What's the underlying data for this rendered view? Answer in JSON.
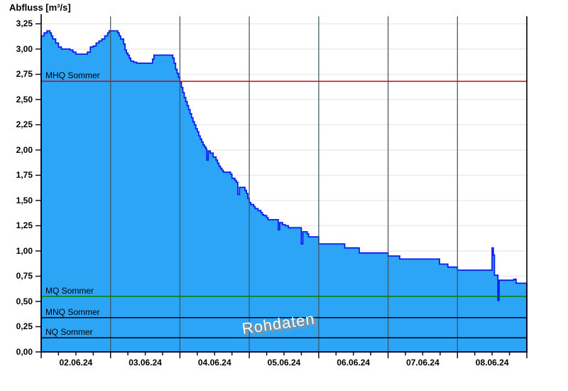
{
  "title": "Abfluss [m³/s]",
  "watermark": "Rohdaten",
  "colors": {
    "area_fill": "#2da5f6",
    "area_stroke": "#0a1cee",
    "h_grid": "#ececec",
    "v_grid": "#3d525a",
    "axis": "#000000",
    "mhq_line": "#d40000",
    "mq_line": "#007d00",
    "mnq_line": "#000000",
    "nq_line": "#000000"
  },
  "chart_data": {
    "type": "area",
    "title": "Abfluss [m³/s]",
    "ylabel": "Abfluss [m³/s]",
    "xlabel": "",
    "x_unit": "hours since 02.06.24 00:00",
    "xlim": [
      0,
      168
    ],
    "ylim": [
      0,
      3.32
    ],
    "grid": "on",
    "y_ticks": [
      {
        "value": 0.0,
        "label": "0,00"
      },
      {
        "value": 0.25,
        "label": "0,25"
      },
      {
        "value": 0.5,
        "label": "0,50"
      },
      {
        "value": 0.75,
        "label": "0,75"
      },
      {
        "value": 1.0,
        "label": "1,00"
      },
      {
        "value": 1.25,
        "label": "1,25"
      },
      {
        "value": 1.5,
        "label": "1,50"
      },
      {
        "value": 1.75,
        "label": "1,75"
      },
      {
        "value": 2.0,
        "label": "2,00"
      },
      {
        "value": 2.25,
        "label": "2,25"
      },
      {
        "value": 2.5,
        "label": "2,50"
      },
      {
        "value": 2.75,
        "label": "2,75"
      },
      {
        "value": 3.0,
        "label": "3,00"
      },
      {
        "value": 3.25,
        "label": "3,25"
      }
    ],
    "x_ticks": [
      {
        "hour": 12,
        "label": "02.06.24"
      },
      {
        "hour": 36,
        "label": "03.06.24"
      },
      {
        "hour": 60,
        "label": "04.06.24"
      },
      {
        "hour": 84,
        "label": "05.06.24"
      },
      {
        "hour": 108,
        "label": "06.06.24"
      },
      {
        "hour": 132,
        "label": "07.06.24"
      },
      {
        "hour": 156,
        "label": "08.06.24"
      }
    ],
    "x_day_boundaries_hours": [
      24,
      48,
      72,
      96,
      120,
      144
    ],
    "x_minor_tick_step_hours": 6,
    "reference_lines": [
      {
        "name": "MHQ Sommer",
        "value": 2.68,
        "color": "#d40000"
      },
      {
        "name": "MQ Sommer",
        "value": 0.55,
        "color": "#007d00"
      },
      {
        "name": "MNQ Sommer",
        "value": 0.34,
        "color": "#000000"
      },
      {
        "name": "NQ Sommer",
        "value": 0.14,
        "color": "#000000"
      }
    ],
    "series": [
      {
        "name": "Rohdaten",
        "step": "after",
        "points": [
          [
            0,
            3.13
          ],
          [
            1,
            3.16
          ],
          [
            2,
            3.18
          ],
          [
            3,
            3.16
          ],
          [
            3.5,
            3.13
          ],
          [
            4,
            3.1
          ],
          [
            5,
            3.06
          ],
          [
            6,
            3.02
          ],
          [
            7,
            3.0
          ],
          [
            10,
            2.99
          ],
          [
            11,
            2.97
          ],
          [
            12,
            2.95
          ],
          [
            15,
            2.95
          ],
          [
            16,
            2.97
          ],
          [
            17,
            3.02
          ],
          [
            18,
            3.03
          ],
          [
            19,
            3.06
          ],
          [
            20,
            3.08
          ],
          [
            21,
            3.1
          ],
          [
            22,
            3.13
          ],
          [
            23,
            3.16
          ],
          [
            23.5,
            3.18
          ],
          [
            26.5,
            3.16
          ],
          [
            27,
            3.13
          ],
          [
            27.5,
            3.1
          ],
          [
            28.5,
            3.05
          ],
          [
            29,
            2.99
          ],
          [
            29.5,
            2.96
          ],
          [
            30,
            2.94
          ],
          [
            30.5,
            2.91
          ],
          [
            31,
            2.88
          ],
          [
            32,
            2.87
          ],
          [
            33,
            2.86
          ],
          [
            38,
            2.86
          ],
          [
            38.5,
            2.9
          ],
          [
            39,
            2.94
          ],
          [
            45.5,
            2.91
          ],
          [
            46,
            2.86
          ],
          [
            46.5,
            2.8
          ],
          [
            47,
            2.76
          ],
          [
            47.5,
            2.72
          ],
          [
            48,
            2.67
          ],
          [
            48.5,
            2.62
          ],
          [
            49,
            2.57
          ],
          [
            49.5,
            2.52
          ],
          [
            50,
            2.48
          ],
          [
            50.5,
            2.44
          ],
          [
            51,
            2.4
          ],
          [
            51.5,
            2.36
          ],
          [
            52,
            2.32
          ],
          [
            52.5,
            2.28
          ],
          [
            53,
            2.25
          ],
          [
            53.5,
            2.21
          ],
          [
            54,
            2.18
          ],
          [
            54.5,
            2.14
          ],
          [
            55,
            2.11
          ],
          [
            55.5,
            2.08
          ],
          [
            56,
            2.05
          ],
          [
            56.5,
            2.03
          ],
          [
            57,
            2.01
          ],
          [
            57.3,
            1.9
          ],
          [
            57.8,
            1.99
          ],
          [
            58.5,
            1.97
          ],
          [
            59.5,
            1.93
          ],
          [
            60.5,
            1.9
          ],
          [
            61,
            1.87
          ],
          [
            61.5,
            1.84
          ],
          [
            62,
            1.82
          ],
          [
            62.5,
            1.8
          ],
          [
            63,
            1.78
          ],
          [
            65.5,
            1.76
          ],
          [
            66,
            1.72
          ],
          [
            67,
            1.7
          ],
          [
            67.5,
            1.68
          ],
          [
            68,
            1.56
          ],
          [
            68.6,
            1.63
          ],
          [
            70.5,
            1.6
          ],
          [
            71,
            1.57
          ],
          [
            71.5,
            1.52
          ],
          [
            72,
            1.48
          ],
          [
            72.5,
            1.46
          ],
          [
            73.5,
            1.44
          ],
          [
            74,
            1.42
          ],
          [
            75,
            1.4
          ],
          [
            76,
            1.38
          ],
          [
            76.5,
            1.36
          ],
          [
            77,
            1.35
          ],
          [
            78,
            1.33
          ],
          [
            78.5,
            1.31
          ],
          [
            82,
            1.21
          ],
          [
            82.5,
            1.28
          ],
          [
            83.5,
            1.26
          ],
          [
            84.5,
            1.25
          ],
          [
            85.5,
            1.23
          ],
          [
            90,
            1.07
          ],
          [
            90.5,
            1.19
          ],
          [
            92,
            1.17
          ],
          [
            92.5,
            1.14
          ],
          [
            96,
            1.07
          ],
          [
            105,
            1.03
          ],
          [
            110,
            0.98
          ],
          [
            120,
            0.95
          ],
          [
            124,
            0.92
          ],
          [
            137.8,
            0.87
          ],
          [
            140.7,
            0.84
          ],
          [
            144,
            0.81
          ],
          [
            156,
            1.03
          ],
          [
            156.4,
            0.96
          ],
          [
            156.8,
            0.76
          ],
          [
            158,
            0.51
          ],
          [
            158.4,
            0.71
          ],
          [
            163.5,
            0.72
          ],
          [
            164.3,
            0.68
          ],
          [
            168,
            0.68
          ]
        ]
      }
    ]
  }
}
